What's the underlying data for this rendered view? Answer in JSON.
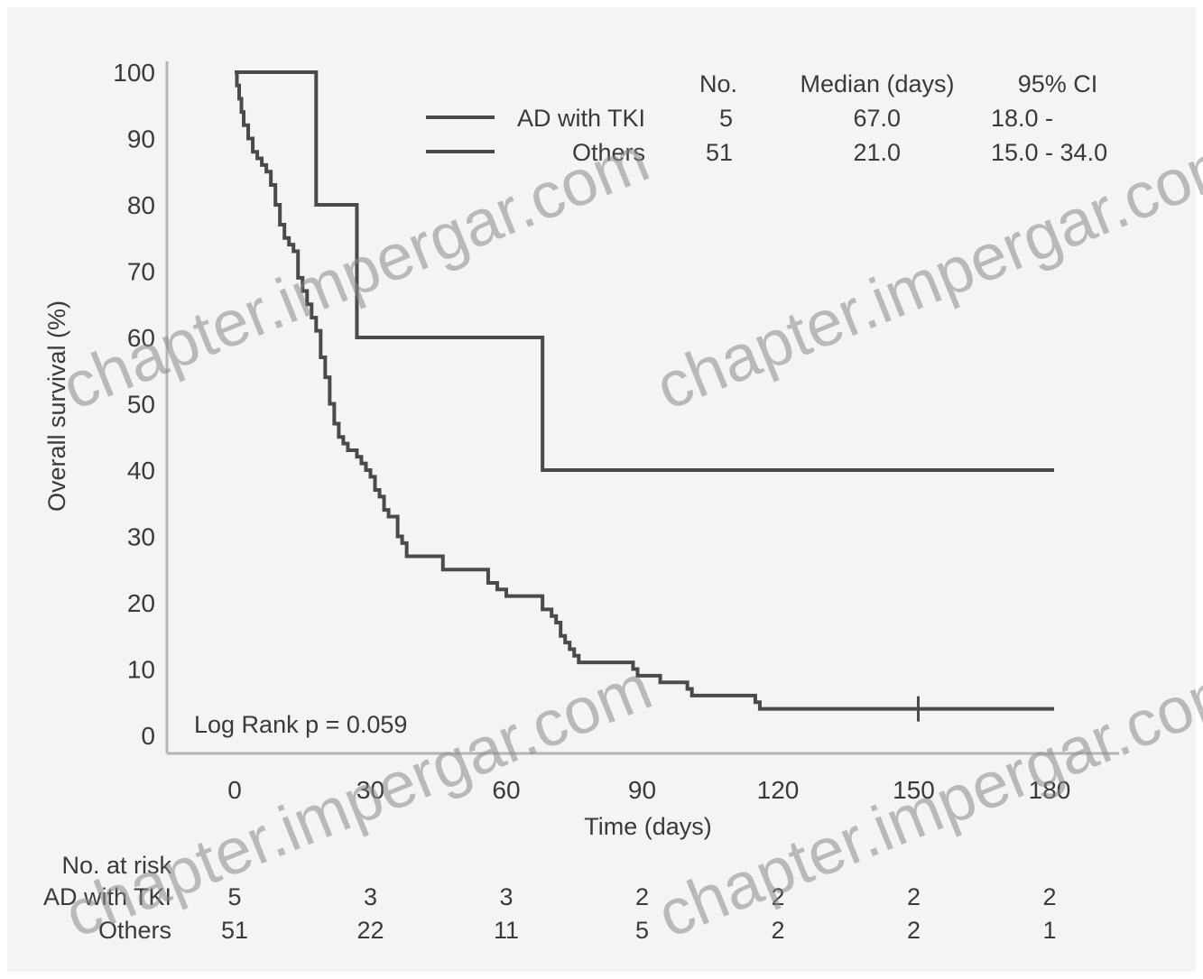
{
  "chart_data": {
    "type": "line",
    "subtype": "kaplan-meier",
    "xlabel": "Time (days)",
    "ylabel": "Overall survival (%)",
    "xlim": [
      0,
      180
    ],
    "ylim": [
      0,
      100
    ],
    "xticks": [
      "0",
      "30",
      "60",
      "90",
      "120",
      "150",
      "180"
    ],
    "yticks": [
      "0",
      "10",
      "20",
      "30",
      "40",
      "50",
      "60",
      "70",
      "80",
      "90",
      "100"
    ],
    "grid": false,
    "annotation": "Log Rank p = 0.059",
    "legend_table": {
      "headers": [
        "No.",
        "Median (days)",
        "95% CI"
      ],
      "rows": [
        {
          "name": "AD with TKI",
          "no": "5",
          "median": "67.0",
          "ci": "18.0 -"
        },
        {
          "name": "Others",
          "no": "51",
          "median": "21.0",
          "ci": "15.0 - 34.0"
        }
      ]
    },
    "series": [
      {
        "name": "AD with TKI",
        "x": [
          0,
          18,
          18,
          27,
          27,
          68,
          68,
          181
        ],
        "y": [
          100,
          100,
          80,
          80,
          60,
          60,
          40,
          40
        ]
      },
      {
        "name": "Others",
        "x": [
          0,
          0.5,
          1,
          1.5,
          2,
          3,
          4,
          5,
          6,
          7,
          8,
          9,
          10,
          11,
          12,
          13,
          14,
          15,
          16,
          17,
          18,
          19,
          20,
          21,
          22,
          23,
          24,
          25,
          26,
          27,
          28,
          29,
          30,
          31,
          32,
          33,
          34,
          35,
          36,
          37,
          38,
          39,
          40,
          41,
          42,
          43,
          46,
          47,
          52,
          56,
          58,
          60,
          62,
          66,
          68,
          70,
          71,
          72,
          73,
          74,
          75,
          76,
          85,
          88,
          89,
          94,
          100,
          101,
          115,
          116,
          151,
          181
        ],
        "y": [
          100,
          98,
          96,
          94,
          92,
          90,
          88,
          87,
          86,
          85,
          83,
          80,
          77,
          75,
          74,
          73,
          69,
          67,
          65,
          63,
          61,
          57,
          54,
          50,
          47,
          45,
          44,
          43,
          43,
          42,
          41,
          40,
          39,
          37,
          36,
          34,
          33,
          33,
          30,
          29,
          27,
          27,
          27,
          27,
          27,
          27,
          25,
          25,
          25,
          23,
          22,
          21,
          21,
          21,
          19,
          18,
          17,
          15,
          14,
          13,
          12,
          11,
          11,
          10,
          9,
          8,
          7,
          6,
          5,
          4,
          4,
          4
        ],
        "censor_x": [
          151
        ]
      }
    ],
    "at_risk": {
      "title": "No. at risk",
      "rows": [
        {
          "name": "AD with TKI",
          "values": [
            "5",
            "3",
            "3",
            "2",
            "2",
            "2",
            "2"
          ]
        },
        {
          "name": "Others",
          "values": [
            "51",
            "22",
            "11",
            "5",
            "2",
            "2",
            "1"
          ]
        }
      ]
    }
  },
  "watermark": "chapter.impergar.com",
  "colors": {
    "line": "#4a4a4a",
    "background": "#f4f4f4"
  }
}
